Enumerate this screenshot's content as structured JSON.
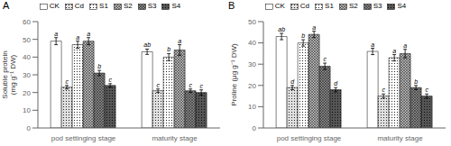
{
  "chart_data": [
    {
      "type": "bar",
      "title": "A",
      "ylabel": "Soluble protein\n(mg g⁻¹ DW)",
      "categories": [
        "pod settinging stage",
        "maturity stage"
      ],
      "ylim": [
        0,
        60
      ],
      "yticks": [
        0,
        10,
        20,
        30,
        40,
        50,
        60
      ],
      "legend": "top",
      "series": [
        {
          "name": "CK",
          "color": "white",
          "values": [
            49,
            43
          ],
          "errors": [
            2.0,
            1.5
          ],
          "letters": [
            "a",
            "ab"
          ]
        },
        {
          "name": "Cd",
          "color": "#e0e0e0",
          "values": [
            23,
            21
          ],
          "errors": [
            1.0,
            1.0
          ],
          "letters": [
            "c",
            "c"
          ]
        },
        {
          "name": "S1",
          "color": "white",
          "values": [
            47,
            40
          ],
          "errors": [
            2.0,
            2.0
          ],
          "letters": [
            "a",
            "b"
          ]
        },
        {
          "name": "S2",
          "color": "#b8b8b8",
          "values": [
            49,
            44
          ],
          "errors": [
            2.0,
            3.0
          ],
          "letters": [
            "a",
            "a"
          ]
        },
        {
          "name": "S3",
          "color": "#888888",
          "values": [
            31,
            21
          ],
          "errors": [
            1.5,
            1.0
          ],
          "letters": [
            "b",
            "c"
          ]
        },
        {
          "name": "S4",
          "color": "#555555",
          "values": [
            24,
            20
          ],
          "errors": [
            1.0,
            1.5
          ],
          "letters": [
            "c",
            "c"
          ]
        }
      ]
    },
    {
      "type": "bar",
      "title": "B",
      "ylabel": "Proline (μg g⁻¹ DW)",
      "categories": [
        "pod settinging stage",
        "maturity stage"
      ],
      "ylim": [
        0,
        50
      ],
      "yticks": [
        0,
        10,
        20,
        30,
        40,
        50
      ],
      "legend": "top",
      "series": [
        {
          "name": "CK",
          "color": "white",
          "values": [
            43,
            36
          ],
          "errors": [
            1.5,
            1.5
          ],
          "letters": [
            "ab",
            "a"
          ]
        },
        {
          "name": "Cd",
          "color": "#e0e0e0",
          "values": [
            19,
            15
          ],
          "errors": [
            1.0,
            1.0
          ],
          "letters": [
            "d",
            "c"
          ]
        },
        {
          "name": "S1",
          "color": "white",
          "values": [
            40,
            33
          ],
          "errors": [
            1.5,
            1.5
          ],
          "letters": [
            "b",
            "a"
          ]
        },
        {
          "name": "S2",
          "color": "#b8b8b8",
          "values": [
            44,
            35
          ],
          "errors": [
            1.5,
            2.0
          ],
          "letters": [
            "a",
            "a"
          ]
        },
        {
          "name": "S3",
          "color": "#888888",
          "values": [
            29,
            19
          ],
          "errors": [
            1.5,
            1.0
          ],
          "letters": [
            "c",
            "b"
          ]
        },
        {
          "name": "S4",
          "color": "#555555",
          "values": [
            18,
            15
          ],
          "errors": [
            1.0,
            1.0
          ],
          "letters": [
            "d",
            "c"
          ]
        }
      ]
    }
  ]
}
